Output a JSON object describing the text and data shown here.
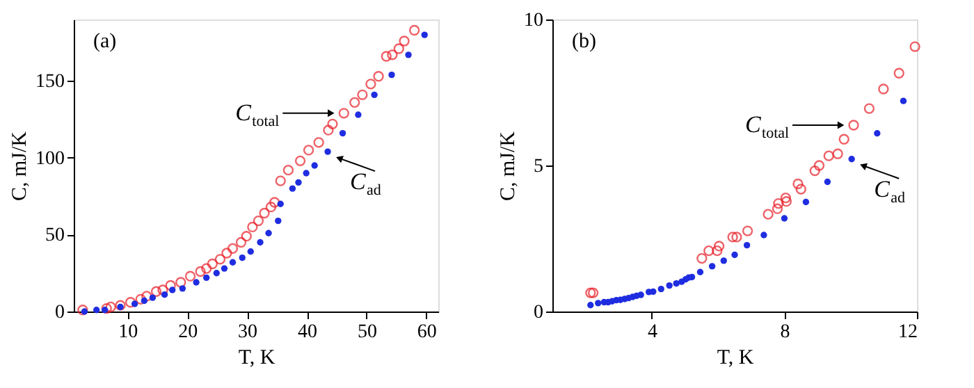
{
  "chart_data": [
    {
      "type": "scatter",
      "title": "(a)",
      "xlabel": "T, K",
      "ylabel": "C, mJ/K",
      "xlim": [
        1,
        62
      ],
      "ylim": [
        0,
        190
      ],
      "xticks": [
        10,
        20,
        30,
        40,
        50,
        60
      ],
      "yticks": [
        0,
        50,
        100,
        150
      ],
      "grid": false,
      "marker": "circle",
      "series": [
        {
          "color": "#e8202a",
          "x": [
            2.5,
            6.5,
            7.2,
            8.8,
            10.5,
            12.2,
            13.2,
            14.8,
            15.9,
            17.2,
            18.9,
            20.5,
            22.2,
            23.2,
            24.2,
            25.5,
            26.6,
            27.6,
            29,
            29.9,
            30.9,
            31.9,
            32.9,
            34,
            34.6,
            35.6,
            36.9,
            38.9,
            40.3,
            42,
            43.6,
            44.3,
            46.2,
            48,
            49.3,
            50.7,
            52,
            53.3,
            54.3,
            55.4,
            56.3,
            58
          ],
          "values": [
            1,
            2,
            3,
            4,
            6,
            8,
            10,
            13,
            14,
            17,
            19,
            23,
            26,
            28,
            31,
            34,
            38,
            41,
            45,
            49,
            55,
            59,
            64,
            68,
            71,
            85,
            92,
            98,
            105,
            110,
            118,
            122,
            129,
            136,
            141,
            148,
            153,
            166,
            167,
            171,
            176,
            183
          ]
        },
        {
          "color": "#1f2de0",
          "x": [
            2.8,
            4.8,
            6.2,
            8.8,
            11.2,
            12.8,
            14.2,
            16.2,
            17.5,
            19.2,
            21.5,
            23.2,
            24.9,
            26.2,
            27.6,
            29.2,
            30.6,
            32.2,
            33.6,
            35.2,
            35.6,
            37.6,
            38.6,
            39.9,
            41.3,
            43.5,
            46,
            48.6,
            51.3,
            54.2,
            57,
            59.7
          ],
          "values": [
            0,
            1,
            1,
            3,
            5,
            7,
            9,
            11,
            14,
            15,
            19,
            22,
            25,
            28,
            32,
            35,
            39,
            45,
            51,
            59,
            70,
            80,
            84,
            90,
            95,
            104,
            116,
            128,
            141,
            154,
            167,
            180
          ]
        }
      ],
      "annotations": [
        {
          "text": "C$_{total}$",
          "x": 46.2,
          "y": 129
        },
        {
          "text": "C$_{ad}$",
          "x": 43.5,
          "y": 104
        }
      ]
    },
    {
      "type": "scatter",
      "title": "(b)",
      "xlabel": "T, K",
      "ylabel": "C, mJ/K",
      "xlim": [
        1,
        12
      ],
      "ylim": [
        0,
        10
      ],
      "xticks": [
        4,
        8,
        12
      ],
      "yticks": [
        0,
        5,
        10
      ],
      "grid": false,
      "marker": "circle",
      "series": [
        {
          "color": "#e8202a",
          "x": [
            2.15,
            2.23,
            5.51,
            5.72,
            5.97,
            6.03,
            6.44,
            6.56,
            6.89,
            7.51,
            7.79,
            7.82,
            8.04,
            8.06,
            8.41,
            8.5,
            8.92,
            9.05,
            9.34,
            9.61,
            9.8,
            10.09,
            10.56,
            10.99,
            11.46,
            11.94
          ],
          "values": [
            0.64,
            0.64,
            1.82,
            2.08,
            2.08,
            2.24,
            2.55,
            2.55,
            2.76,
            3.33,
            3.52,
            3.7,
            3.89,
            3.77,
            4.37,
            4.19,
            4.82,
            5.0,
            5.33,
            5.4,
            5.9,
            6.38,
            6.95,
            7.62,
            8.16,
            9.07
          ]
        },
        {
          "color": "#1f2de0",
          "x": [
            2.15,
            2.38,
            2.56,
            2.68,
            2.8,
            2.93,
            3.05,
            3.18,
            3.3,
            3.42,
            3.54,
            3.67,
            3.91,
            4.04,
            4.28,
            4.53,
            4.74,
            4.9,
            5.02,
            5.11,
            5.21,
            5.46,
            5.82,
            6.17,
            6.5,
            6.87,
            7.38,
            8.0,
            8.65,
            9.3,
            10.03,
            10.8,
            11.59
          ],
          "values": [
            0.22,
            0.29,
            0.32,
            0.32,
            0.35,
            0.39,
            0.4,
            0.43,
            0.46,
            0.5,
            0.54,
            0.57,
            0.67,
            0.68,
            0.77,
            0.89,
            0.96,
            1.02,
            1.1,
            1.16,
            1.18,
            1.35,
            1.55,
            1.74,
            1.94,
            2.27,
            2.62,
            3.19,
            3.75,
            4.44,
            5.22,
            6.1,
            7.21
          ]
        }
      ],
      "annotations": [
        {
          "text": "C$_{total}$",
          "x": 10.09,
          "y": 6.38
        },
        {
          "text": "C$_{ad}$",
          "x": 10.03,
          "y": 5.22
        }
      ]
    }
  ]
}
